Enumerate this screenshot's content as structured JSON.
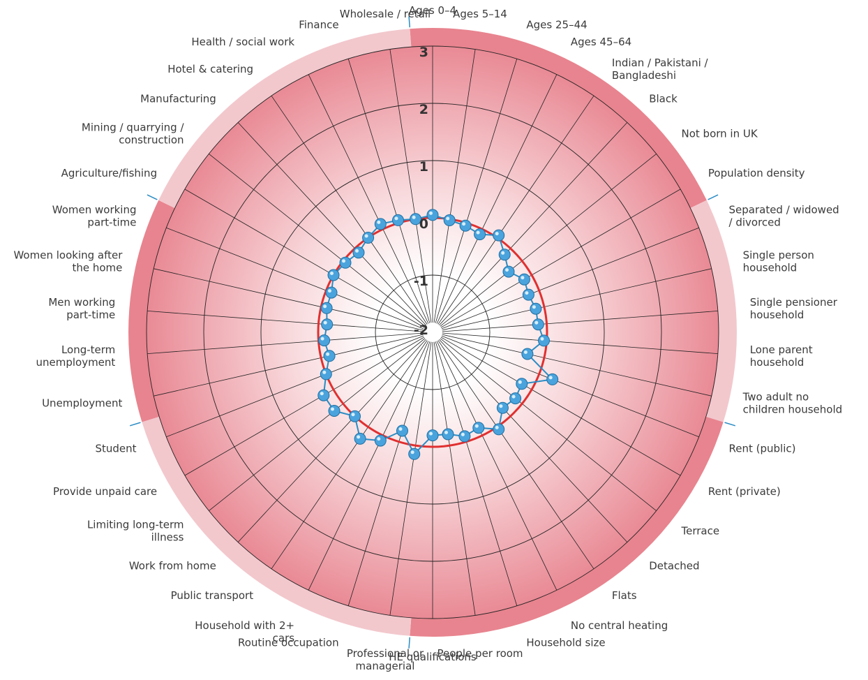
{
  "chart_data": {
    "type": "radar",
    "ticks": [
      -2,
      -1,
      0,
      1,
      2,
      3
    ],
    "range": [
      -2,
      3
    ],
    "reference_value": 0,
    "variables": [
      {
        "label": "Ages 0–4",
        "value": 0.05
      },
      {
        "label": "Ages 5–14",
        "value": -0.02
      },
      {
        "label": "Ages 25–44",
        "value": -0.05
      },
      {
        "label": "Ages 45–64",
        "value": -0.1
      },
      {
        "label": "Indian / Pakistani / Bangladeshi",
        "value": 0.05
      },
      {
        "label": "Black",
        "value": -0.15
      },
      {
        "label": "Not born in UK",
        "value": -0.3
      },
      {
        "label": "Population density",
        "value": -0.15
      },
      {
        "label": "Separated / widowed / divorced",
        "value": -0.2
      },
      {
        "label": "Single person household",
        "value": -0.15
      },
      {
        "label": "Single pensioner household",
        "value": -0.15
      },
      {
        "label": "Lone parent household",
        "value": -0.05
      },
      {
        "label": "Two adult no children household",
        "value": -0.3
      },
      {
        "label": "Rent (public)",
        "value": 0.25
      },
      {
        "label": "Rent (private)",
        "value": -0.2
      },
      {
        "label": "Terrace",
        "value": -0.15
      },
      {
        "label": "Detached",
        "value": -0.2
      },
      {
        "label": "Flats",
        "value": 0.05
      },
      {
        "label": "No central heating",
        "value": -0.15
      },
      {
        "label": "Household size",
        "value": -0.1
      },
      {
        "label": "People per room",
        "value": -0.2
      },
      {
        "label": "HE qualifications",
        "value": -0.2
      },
      {
        "label": "Professional or managerial",
        "value": 0.15
      },
      {
        "label": "Routine occupation",
        "value": -0.2
      },
      {
        "label": "Household with 2+ cars",
        "value": 0.1
      },
      {
        "label": "Public transport",
        "value": 0.25
      },
      {
        "label": "Work from home",
        "value": 0.0
      },
      {
        "label": "Limiting long-term illness",
        "value": 0.2
      },
      {
        "label": "Provide unpaid care",
        "value": 0.2
      },
      {
        "label": "Student",
        "value": 0.0
      },
      {
        "label": "Unemployment",
        "value": -0.15
      },
      {
        "label": "Long-term unemployment",
        "value": -0.1
      },
      {
        "label": "Men working part-time",
        "value": -0.15
      },
      {
        "label": "Women looking after the home",
        "value": -0.1
      },
      {
        "label": "Women working part-time",
        "value": -0.1
      },
      {
        "label": "Agriculture/fishing",
        "value": 0.0
      },
      {
        "label": "Mining / quarrying / construction",
        "value": -0.05
      },
      {
        "label": "Manufacturing",
        "value": -0.1
      },
      {
        "label": "Hotel & catering",
        "value": 0.0
      },
      {
        "label": "Health / social work",
        "value": 0.1
      },
      {
        "label": "Finance",
        "value": 0.05
      },
      {
        "label": "Wholesale / retail",
        "value": 0.0
      }
    ],
    "colors": {
      "series": "#2b8cc4",
      "marker": "#4aa3dc",
      "reference_circle": "#e03030",
      "band_outer": "#e8848f",
      "band_inner": "#ffffff",
      "ring_dark": "#e8848f",
      "ring_light": "#f2c8cd"
    }
  }
}
